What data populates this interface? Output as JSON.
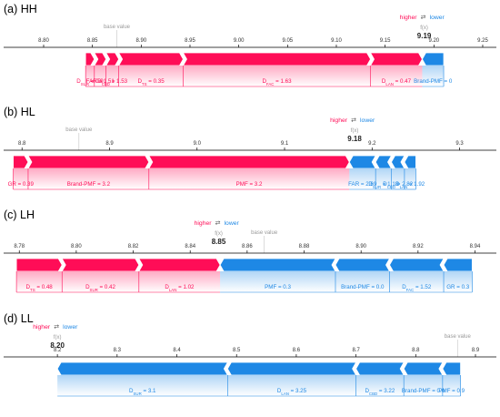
{
  "colors": {
    "higher": "#ff0d57",
    "lower": "#1e88e5",
    "axis": "#000000",
    "muted": "#999999"
  },
  "legend": {
    "higher": "higher",
    "lower": "lower",
    "arrows": "⇄",
    "fx": "f(x)",
    "base": "base value"
  },
  "chart_data": [
    {
      "type": "force",
      "panel_title": "(a) HH",
      "fx_value": 9.19,
      "fx_label": "9.19",
      "base_value": 8.875,
      "ticks": [
        "8.80",
        "8.85",
        "8.90",
        "8.95",
        "9.00",
        "9.05",
        "9.10",
        "9.15",
        "9.20",
        "9.25"
      ],
      "tick_values": [
        8.8,
        8.85,
        8.9,
        8.95,
        9.0,
        9.05,
        9.1,
        9.15,
        9.2,
        9.25
      ],
      "xlim": [
        8.759,
        9.264
      ],
      "positive": [
        {
          "label": "D_SUR = 0.9",
          "name": "D",
          "sub": "SUR",
          "value": "0.9",
          "start": 8.843,
          "end": 8.852
        },
        {
          "label": "FAR = 1.51",
          "name": "FAR",
          "sub": "",
          "value": "1.51",
          "start": 8.852,
          "end": 8.864
        },
        {
          "label": "D_CBD = 1.53",
          "name": "D",
          "sub": "CBD",
          "value": "1.53",
          "start": 8.864,
          "end": 8.877
        },
        {
          "label": "D_TS = 0.35",
          "name": "D",
          "sub": "TS",
          "value": "0.35",
          "start": 8.877,
          "end": 8.943
        },
        {
          "label": "D_FAC = 1.63",
          "name": "D",
          "sub": "FAC",
          "value": "1.63",
          "start": 8.943,
          "end": 9.135
        },
        {
          "label": "D_LAN = 0.47",
          "name": "D",
          "sub": "LAN",
          "value": "0.47",
          "start": 9.135,
          "end": 9.188
        }
      ],
      "negative": [
        {
          "label": "Brand-PMF = 0",
          "name": "Brand-PMF",
          "sub": "",
          "value": "0",
          "start": 9.188,
          "end": 9.21
        }
      ]
    },
    {
      "type": "force",
      "panel_title": "(b) HL",
      "fx_value": 9.18,
      "fx_label": "9.18",
      "base_value": 8.865,
      "ticks": [
        "8.8",
        "8.9",
        "9.0",
        "9.1",
        "9.2",
        "9.3"
      ],
      "tick_values": [
        8.8,
        8.9,
        9.0,
        9.1,
        9.2,
        9.3
      ],
      "xlim": [
        8.779,
        9.342
      ],
      "positive": [
        {
          "label": "GR = 0.39",
          "name": "GR",
          "sub": "",
          "value": "0.39",
          "start": 8.79,
          "end": 8.807
        },
        {
          "label": "Brand-PMF = 3.2",
          "name": "Brand-PMF",
          "sub": "",
          "value": "3.2",
          "start": 8.807,
          "end": 8.945
        },
        {
          "label": "PMF = 3.2",
          "name": "PMF",
          "sub": "",
          "value": "3.2",
          "start": 8.945,
          "end": 9.174
        }
      ],
      "negative": [
        {
          "label": "FAR = 2.69",
          "name": "FAR",
          "sub": "",
          "value": "2.69",
          "start": 9.174,
          "end": 9.204
        },
        {
          "label": "D_SUR = 1.18",
          "name": "D",
          "sub": "SUR",
          "value": "1.18",
          "start": 9.204,
          "end": 9.222
        },
        {
          "label": "D_CBD = 2.82",
          "name": "D",
          "sub": "CBD",
          "value": "2.82",
          "start": 9.222,
          "end": 9.237
        },
        {
          "label": "D_LAN = 1.92",
          "name": "D",
          "sub": "LAN",
          "value": "1.92",
          "start": 9.237,
          "end": 9.25
        }
      ]
    },
    {
      "type": "force",
      "panel_title": "(c) LH",
      "fx_value": 8.85,
      "fx_label": "8.85",
      "base_value": 8.866,
      "ticks": [
        "8.78",
        "8.80",
        "8.82",
        "8.84",
        "8.86",
        "8.88",
        "8.90",
        "8.92",
        "8.94"
      ],
      "tick_values": [
        8.78,
        8.8,
        8.82,
        8.84,
        8.86,
        8.88,
        8.9,
        8.92,
        8.94
      ],
      "xlim": [
        8.7745,
        8.9475
      ],
      "positive": [
        {
          "label": "D_TS = 0.48",
          "name": "D",
          "sub": "TS",
          "value": "0.48",
          "start": 8.779,
          "end": 8.795
        },
        {
          "label": "D_SUR = 0.42",
          "name": "D",
          "sub": "SUR",
          "value": "0.42",
          "start": 8.795,
          "end": 8.822
        },
        {
          "label": "D_LAN = 1.02",
          "name": "D",
          "sub": "LAN",
          "value": "1.02",
          "start": 8.822,
          "end": 8.8505
        }
      ],
      "negative": [
        {
          "label": "PMF = 0.3",
          "name": "PMF",
          "sub": "",
          "value": "0.3",
          "start": 8.8505,
          "end": 8.891
        },
        {
          "label": "Brand-PMF = 0.0",
          "name": "Brand-PMF",
          "sub": "",
          "value": "0.0",
          "start": 8.891,
          "end": 8.91
        },
        {
          "label": "D_FAC = 1.52",
          "name": "D",
          "sub": "FAC",
          "value": "1.52",
          "start": 8.91,
          "end": 8.929
        },
        {
          "label": "GR = 0.3",
          "name": "GR",
          "sub": "",
          "value": "0.3",
          "start": 8.929,
          "end": 8.939
        }
      ]
    },
    {
      "type": "force",
      "panel_title": "(d) LL",
      "fx_value": 8.2,
      "fx_label": "8.20",
      "base_value": 8.87,
      "ticks": [
        "8.2",
        "8.3",
        "8.4",
        "8.5",
        "8.6",
        "8.7",
        "8.8",
        "8.9"
      ],
      "tick_values": [
        8.2,
        8.3,
        8.4,
        8.5,
        8.6,
        8.7,
        8.8,
        8.9
      ],
      "xlim": [
        8.11,
        8.935
      ],
      "positive": [],
      "negative": [
        {
          "label": "D_SUR = 3.1",
          "name": "D",
          "sub": "SUR",
          "value": "3.1",
          "start": 8.2,
          "end": 8.485
        },
        {
          "label": "D_LAN = 3.25",
          "name": "D",
          "sub": "LAN",
          "value": "3.25",
          "start": 8.485,
          "end": 8.7
        },
        {
          "label": "D_CBD = 3.22",
          "name": "D",
          "sub": "CBD",
          "value": "3.22",
          "start": 8.7,
          "end": 8.78
        },
        {
          "label": "Brand-PMF = 0.0",
          "name": "Brand-PMF",
          "sub": "",
          "value": "0.0",
          "start": 8.78,
          "end": 8.845
        },
        {
          "label": "PMF = 0.9",
          "name": "PMF",
          "sub": "",
          "value": "0.9",
          "start": 8.845,
          "end": 8.875
        }
      ]
    }
  ]
}
